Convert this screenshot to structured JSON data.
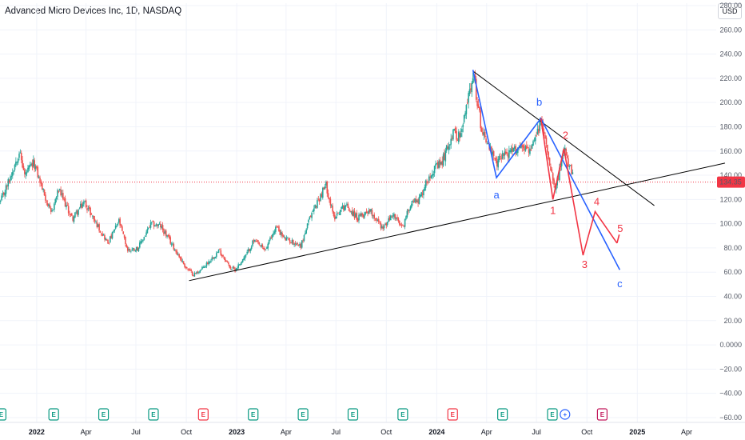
{
  "header": {
    "title": "Advanced Micro Devices Inc, 1D, NASDAQ",
    "currency": "USD"
  },
  "colors": {
    "up": "#26a69a",
    "down": "#ef5350",
    "wave_blue": "#2962ff",
    "wave_red": "#f23645",
    "trendline": "#000000",
    "price_line": "#f23645",
    "earnings_green": "#089981"
  },
  "chart_data": {
    "type": "candlestick",
    "title": "Advanced Micro Devices Inc, 1D, NASDAQ",
    "y_axis": {
      "ticks": [
        "280.00",
        "260.00",
        "240.00",
        "220.00",
        "200.00",
        "180.00",
        "160.00",
        "140.00",
        "120.00",
        "100.00",
        "80.00",
        "60.00",
        "40.00",
        "20.00",
        "0.0000",
        "−20.00",
        "−40.00",
        "−60.00"
      ],
      "tick_values": [
        280,
        260,
        240,
        220,
        200,
        180,
        160,
        140,
        120,
        100,
        80,
        60,
        40,
        20,
        0,
        -20,
        -40,
        -60
      ],
      "range": [
        -64,
        282
      ],
      "position": "right"
    },
    "x_axis": {
      "ticks": [
        "2022",
        "Apr",
        "Jul",
        "Oct",
        "2023",
        "Apr",
        "Jul",
        "Oct",
        "2024",
        "Apr",
        "Jul",
        "Oct",
        "2025",
        "Apr"
      ],
      "tick_dates": [
        "2022-01-01",
        "2022-04-01",
        "2022-07-01",
        "2022-10-01",
        "2023-01-01",
        "2023-04-01",
        "2023-07-01",
        "2023-10-01",
        "2024-01-01",
        "2024-04-01",
        "2024-07-01",
        "2024-10-01",
        "2025-01-01",
        "2025-04-01"
      ],
      "range": [
        "2021-10-26",
        "2025-05-25"
      ]
    },
    "last_price": {
      "value": 134.35,
      "label": "134.35"
    },
    "price_path": [
      [
        "2021-10-27",
        118
      ],
      [
        "2021-11-15",
        140
      ],
      [
        "2021-11-30",
        160
      ],
      [
        "2021-12-10",
        140
      ],
      [
        "2021-12-27",
        150
      ],
      [
        "2022-01-12",
        128
      ],
      [
        "2022-01-27",
        108
      ],
      [
        "2022-02-10",
        128
      ],
      [
        "2022-03-07",
        104
      ],
      [
        "2022-03-29",
        118
      ],
      [
        "2022-04-20",
        100
      ],
      [
        "2022-05-11",
        84
      ],
      [
        "2022-05-31",
        102
      ],
      [
        "2022-06-16",
        78
      ],
      [
        "2022-07-05",
        80
      ],
      [
        "2022-07-29",
        100
      ],
      [
        "2022-08-15",
        98
      ],
      [
        "2022-09-06",
        82
      ],
      [
        "2022-09-30",
        64
      ],
      [
        "2022-10-14",
        58
      ],
      [
        "2022-10-28",
        62
      ],
      [
        "2022-11-30",
        78
      ],
      [
        "2022-12-20",
        64
      ],
      [
        "2022-12-29",
        62
      ],
      [
        "2023-01-18",
        74
      ],
      [
        "2023-02-01",
        86
      ],
      [
        "2023-02-22",
        78
      ],
      [
        "2023-03-14",
        98
      ],
      [
        "2023-03-28",
        88
      ],
      [
        "2023-04-28",
        82
      ],
      [
        "2023-05-17",
        108
      ],
      [
        "2023-06-06",
        126
      ],
      [
        "2023-06-13",
        132
      ],
      [
        "2023-06-27",
        105
      ],
      [
        "2023-07-18",
        116
      ],
      [
        "2023-08-10",
        104
      ],
      [
        "2023-08-31",
        112
      ],
      [
        "2023-09-25",
        96
      ],
      [
        "2023-10-13",
        108
      ],
      [
        "2023-10-30",
        96
      ],
      [
        "2023-11-15",
        118
      ],
      [
        "2023-11-30",
        120
      ],
      [
        "2023-12-20",
        142
      ],
      [
        "2024-01-10",
        150
      ],
      [
        "2024-01-30",
        175
      ],
      [
        "2024-02-14",
        172
      ],
      [
        "2024-03-07",
        225
      ],
      [
        "2024-03-22",
        180
      ],
      [
        "2024-04-19",
        148
      ],
      [
        "2024-04-29",
        158
      ],
      [
        "2024-05-14",
        158
      ],
      [
        "2024-06-04",
        165
      ],
      [
        "2024-06-21",
        160
      ],
      [
        "2024-07-10",
        185
      ],
      [
        "2024-07-30",
        140
      ],
      [
        "2024-08-05",
        130
      ],
      [
        "2024-08-15",
        150
      ],
      [
        "2024-08-21",
        160
      ],
      [
        "2024-09-06",
        138
      ]
    ],
    "wave_labels": [
      "a",
      "b",
      "c",
      "1",
      "2",
      "3",
      "4",
      "5"
    ],
    "waves": [
      {
        "name": "a-b-c",
        "color": "#2962ff",
        "points": [
          [
            "2024-03-07",
            227
          ],
          [
            "2024-04-19",
            138
          ],
          [
            "2024-07-09",
            187
          ],
          [
            "2024-11-30",
            62
          ]
        ]
      },
      {
        "name": "1-2-3-4-5",
        "color": "#f23645",
        "points": [
          [
            "2024-07-09",
            187
          ],
          [
            "2024-07-31",
            120
          ],
          [
            "2024-08-20",
            162
          ],
          [
            "2024-09-24",
            74
          ],
          [
            "2024-10-16",
            110
          ],
          [
            "2024-11-25",
            84
          ]
        ]
      }
    ],
    "wave_arrow_tip": [
      "2024-11-29",
      91
    ],
    "trendlines": [
      {
        "name": "support",
        "points": [
          [
            "2022-10-06",
            53
          ],
          [
            "2025-06-10",
            150
          ]
        ]
      },
      {
        "name": "resistance",
        "points": [
          [
            "2024-03-07",
            226
          ],
          [
            "2025-02-01",
            115
          ]
        ]
      }
    ],
    "event_markers": [
      {
        "date": "2021-10-28",
        "letter": "E",
        "type": "earnings-beat"
      },
      {
        "date": "2022-02-01",
        "letter": "E",
        "type": "earnings-beat"
      },
      {
        "date": "2022-05-03",
        "letter": "E",
        "type": "earnings-beat"
      },
      {
        "date": "2022-08-02",
        "letter": "E",
        "type": "earnings-beat"
      },
      {
        "date": "2022-11-01",
        "letter": "E",
        "type": "earnings-miss"
      },
      {
        "date": "2023-01-31",
        "letter": "E",
        "type": "earnings-beat"
      },
      {
        "date": "2023-05-02",
        "letter": "E",
        "type": "earnings-beat"
      },
      {
        "date": "2023-08-01",
        "letter": "E",
        "type": "earnings-beat"
      },
      {
        "date": "2023-10-31",
        "letter": "E",
        "type": "earnings-beat"
      },
      {
        "date": "2024-01-30",
        "letter": "E",
        "type": "earnings-miss"
      },
      {
        "date": "2024-04-30",
        "letter": "E",
        "type": "earnings-beat"
      },
      {
        "date": "2024-07-30",
        "letter": "E",
        "type": "earnings-beat"
      },
      {
        "date": "2024-08-22",
        "letter": "+",
        "type": "event"
      },
      {
        "date": "2024-10-29",
        "letter": "E",
        "type": "earnings-upcoming"
      }
    ]
  }
}
